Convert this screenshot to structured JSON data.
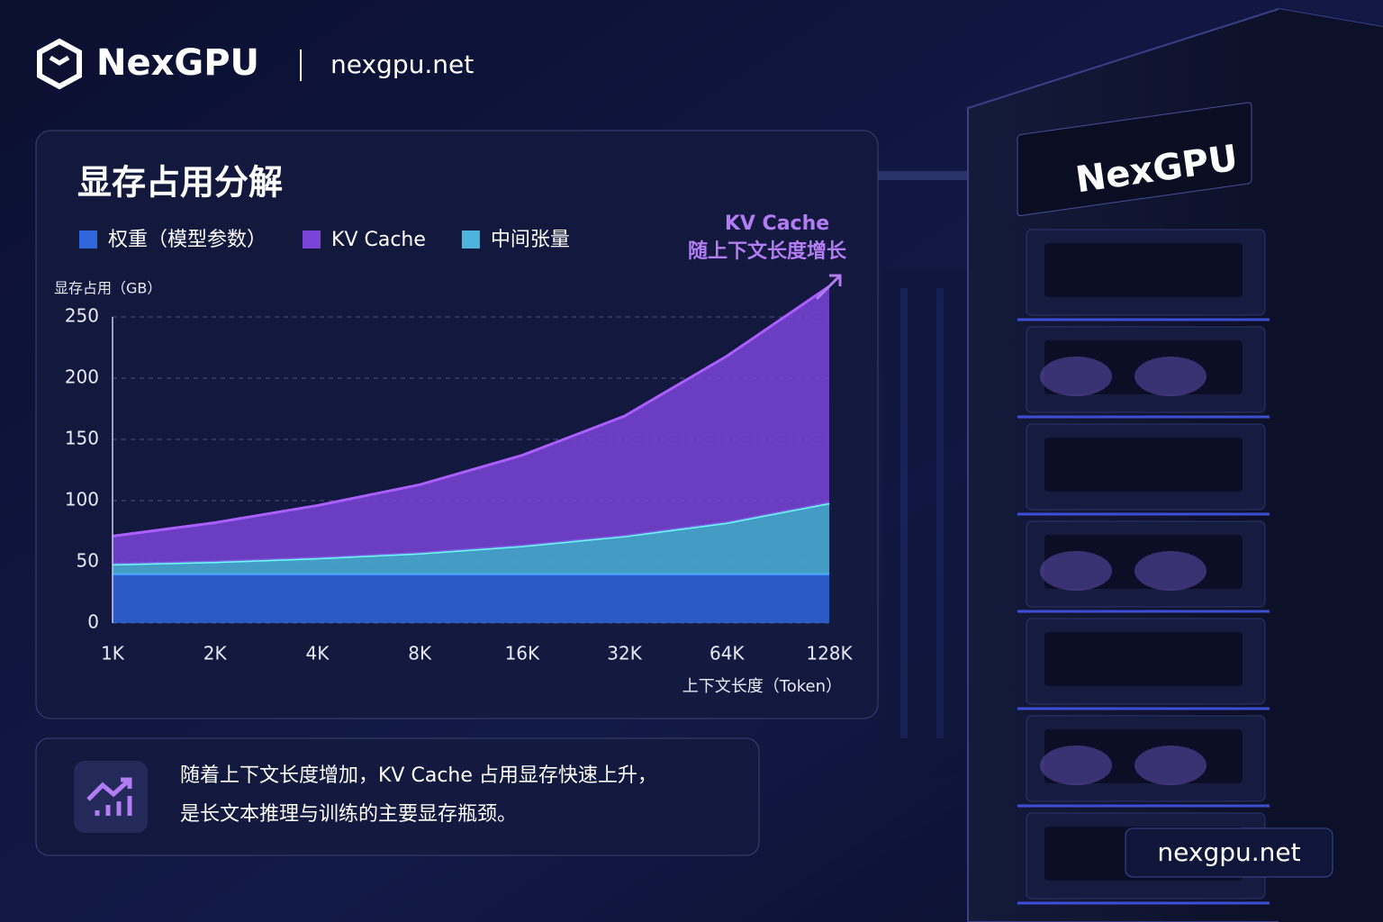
{
  "header": {
    "brand": "NexGPU",
    "url": "nexgpu.net"
  },
  "chart_data": {
    "type": "area",
    "stacked": true,
    "title": "显存占用分解",
    "y_label": "显存占用（GB）",
    "x_label": "上下文长度（Token）",
    "annotation": [
      "KV Cache",
      "随上下文长度增长"
    ],
    "categories": [
      "1K",
      "2K",
      "4K",
      "8K",
      "16K",
      "32K",
      "64K",
      "128K"
    ],
    "series": [
      {
        "name": "权重（模型参数）",
        "color": "#2f66dc",
        "values": [
          40,
          40,
          40,
          40,
          40,
          40,
          40,
          40
        ]
      },
      {
        "name": "KV Cache",
        "color": "#7b44d8",
        "values": [
          23,
          32,
          43,
          56,
          74,
          98,
          136,
          177
        ]
      },
      {
        "name": "中间张量",
        "color": "#4db4dc",
        "values": [
          8,
          10,
          13,
          17,
          23,
          31,
          42,
          58
        ]
      }
    ],
    "stack_order": [
      0,
      2,
      1
    ],
    "ylim": [
      0,
      250
    ],
    "yticks": [
      0,
      50,
      100,
      150,
      200,
      250
    ],
    "grid": true
  },
  "note": {
    "lines": [
      "随着上下文长度增加，KV Cache 占用显存快速上升，",
      "是长文本推理与训练的主要显存瓶颈。"
    ]
  },
  "rack": {
    "brand": "NexGPU",
    "url": "nexgpu.net"
  }
}
